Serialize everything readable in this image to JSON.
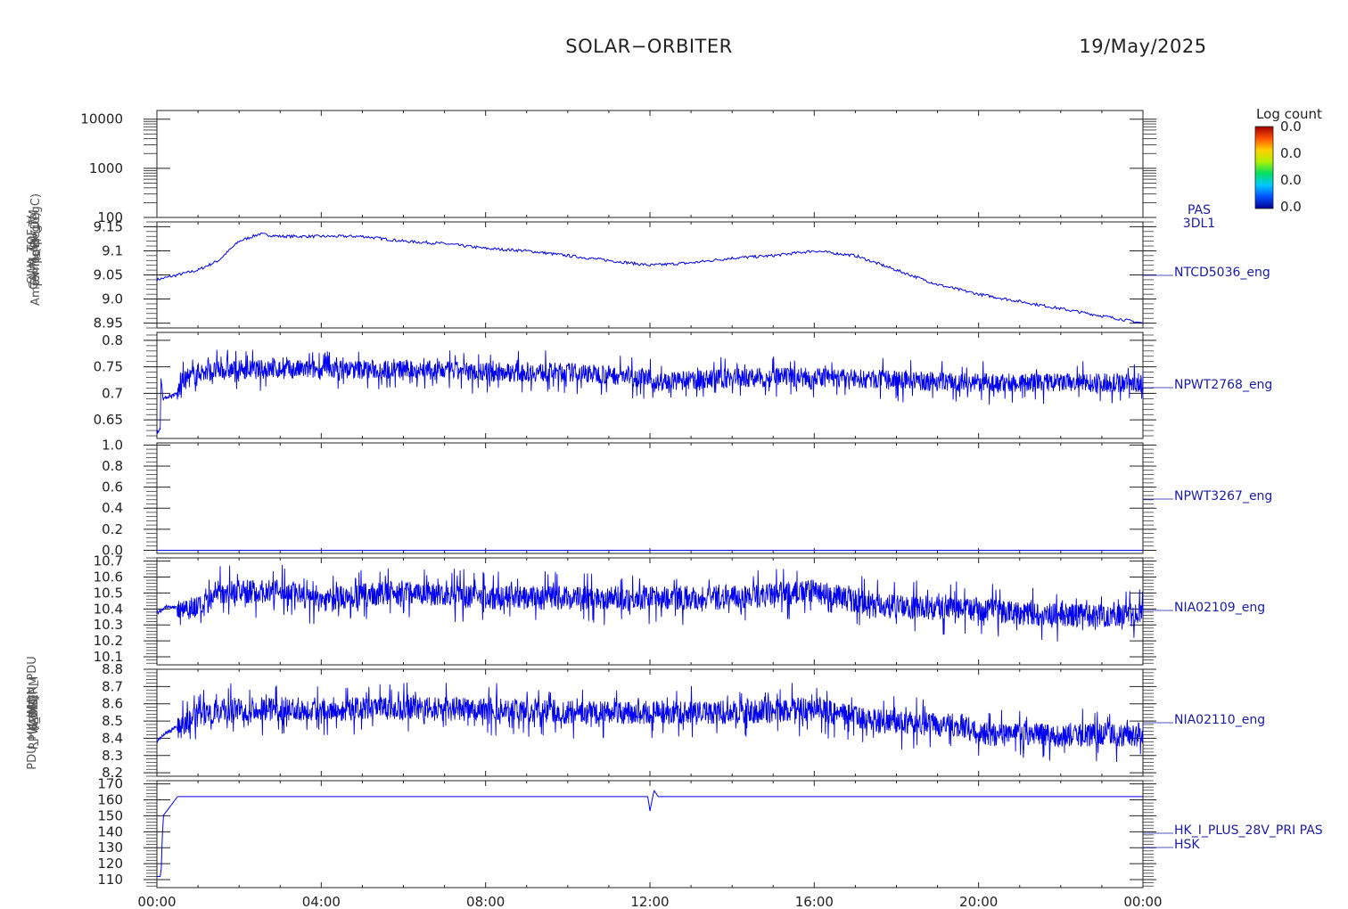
{
  "header": {
    "title": "SOLAR−ORBITER",
    "date": "19/May/2025"
  },
  "colorbar": {
    "label": "Log count",
    "ticks": [
      "0.0",
      "0.0",
      "0.0",
      "0.0"
    ],
    "colors": [
      "#000090",
      "#0050ff",
      "#00c8ff",
      "#00e060",
      "#b0f000",
      "#ffd000",
      "#ff5000",
      "#a00000"
    ]
  },
  "x_axis": {
    "tick_labels": [
      "00:00",
      "04:00",
      "08:00",
      "12:00",
      "16:00",
      "20:00",
      "00:00"
    ]
  },
  "y_axis_overlapped_labels": [
    "(eV)",
    "Temp (DegC)",
    "Ampx Temp (DegC)",
    "SWA_TOF_V",
    "CALM_SW_TM",
    "(ADC)",
    "(mA)",
    "RPW_THERM",
    "PDU_HK_IMON_PDU",
    "(Volts)"
  ],
  "chart_data": [
    {
      "type": "spectrogram",
      "name": "PAS",
      "labels": [
        "PAS",
        "3DL1"
      ],
      "ylog": true,
      "ylim": [
        100,
        15000
      ],
      "yticks": [
        100,
        1000,
        10000
      ],
      "data_note": "no data"
    },
    {
      "type": "line",
      "name": "NTCD5036_eng",
      "ylim": [
        8.94,
        9.16
      ],
      "yticks": [
        8.95,
        9.0,
        9.05,
        9.1,
        9.15
      ],
      "x_hours": [
        0,
        1,
        1.5,
        2,
        2.5,
        3,
        4,
        5,
        6,
        7,
        8,
        9,
        10,
        11,
        12,
        13,
        14,
        15,
        16,
        17,
        18,
        19,
        20,
        21,
        22,
        23,
        24
      ],
      "y": [
        9.04,
        9.06,
        9.08,
        9.12,
        9.135,
        9.13,
        9.13,
        9.13,
        9.12,
        9.115,
        9.105,
        9.1,
        9.09,
        9.08,
        9.07,
        9.075,
        9.085,
        9.09,
        9.1,
        9.09,
        9.06,
        9.03,
        9.01,
        8.995,
        8.98,
        8.965,
        8.95
      ]
    },
    {
      "type": "line",
      "name": "NPWT2768_eng",
      "noisy": true,
      "ylim": [
        0.615,
        0.815
      ],
      "yticks": [
        0.65,
        0.7,
        0.75,
        0.8
      ],
      "x_hours": [
        0,
        0.08,
        0.1,
        0.15,
        0.5,
        0.6,
        1,
        2,
        4,
        6,
        8,
        10,
        11.9,
        12.1,
        14,
        16,
        18,
        20,
        22,
        24
      ],
      "y": [
        0.63,
        0.63,
        0.73,
        0.69,
        0.7,
        0.72,
        0.74,
        0.745,
        0.745,
        0.745,
        0.74,
        0.74,
        0.73,
        0.72,
        0.73,
        0.73,
        0.725,
        0.72,
        0.72,
        0.72
      ]
    },
    {
      "type": "line",
      "name": "NPWT3267_eng",
      "ylim": [
        -0.03,
        1.02
      ],
      "yticks": [
        0.0,
        0.2,
        0.4,
        0.6,
        0.8,
        1.0
      ],
      "x_hours": [
        0,
        24
      ],
      "y": [
        0.0,
        0.0
      ]
    },
    {
      "type": "line",
      "name": "NIA02109_eng",
      "noisy": true,
      "ylim": [
        10.05,
        10.72
      ],
      "yticks": [
        10.1,
        10.2,
        10.3,
        10.4,
        10.5,
        10.6,
        10.7
      ],
      "x_hours": [
        0,
        0.2,
        1.2,
        1.5,
        3.3,
        3.8,
        6,
        8,
        10,
        12,
        14,
        16,
        17.5,
        19.7,
        22,
        24
      ],
      "y": [
        10.37,
        10.41,
        10.41,
        10.51,
        10.51,
        10.45,
        10.51,
        10.47,
        10.47,
        10.47,
        10.47,
        10.51,
        10.42,
        10.4,
        10.36,
        10.36
      ]
    },
    {
      "type": "line",
      "name": "NIA02110_eng",
      "noisy": true,
      "ylim": [
        8.18,
        8.8
      ],
      "yticks": [
        8.2,
        8.3,
        8.4,
        8.5,
        8.6,
        8.7,
        8.8
      ],
      "x_hours": [
        0,
        0.15,
        0.4,
        0.6,
        1.2,
        2,
        4,
        6,
        8,
        10,
        12,
        14,
        16,
        17.5,
        19.7,
        20,
        22,
        24
      ],
      "y": [
        8.38,
        8.42,
        8.46,
        8.47,
        8.55,
        8.57,
        8.57,
        8.57,
        8.57,
        8.55,
        8.55,
        8.55,
        8.57,
        8.5,
        8.47,
        8.42,
        8.42,
        8.42
      ]
    },
    {
      "type": "line",
      "name": "HK_I_PLUS_28V_PRI",
      "labels": [
        "HK_I_PLUS_28V_PRI PAS",
        "HSK"
      ],
      "ylim": [
        105,
        172
      ],
      "yticks": [
        110,
        120,
        130,
        140,
        150,
        160,
        170
      ],
      "x_hours": [
        0,
        0.1,
        0.15,
        0.3,
        0.5,
        11.95,
        12.0,
        12.1,
        12.2,
        24
      ],
      "y": [
        112,
        112,
        150,
        155,
        162,
        162,
        153,
        166,
        162,
        162
      ]
    }
  ]
}
